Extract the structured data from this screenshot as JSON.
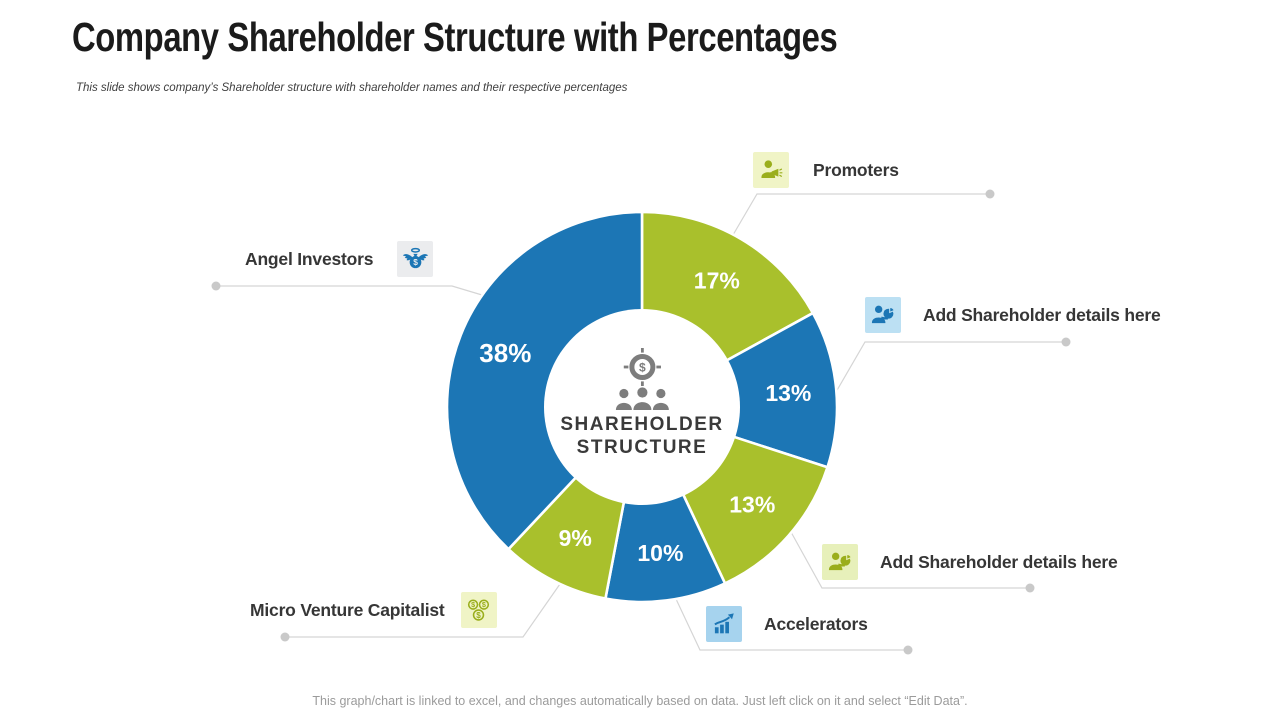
{
  "slide": {
    "title": "Company Shareholder Structure with Percentages",
    "subtitle": "This slide shows company’s Shareholder structure with shareholder names and their respective percentages",
    "footer": "This graph/chart is linked to excel, and changes automatically based on data. Just left click on it and select “Edit Data”."
  },
  "colors": {
    "slice_blue": "#1C76B5",
    "slice_green": "#A9C02C",
    "percent_label": "#FFFFFF",
    "leader_line": "#D5D5D5",
    "connector_dot": "#C9C9C9",
    "center_icon_gray": "#7D7D7D",
    "donut_hole": "#FFFFFF",
    "label_text": "#363636"
  },
  "chart_data": {
    "type": "pie",
    "subtype": "donut",
    "start_angle_deg": 0,
    "direction": "clockwise",
    "legend_position": "callouts",
    "center_label_line1": "SHAREHOLDER",
    "center_label_line2": "STRUCTURE",
    "center_icon": "target-dollar-people-icon",
    "segments": [
      {
        "label": "Promoters",
        "value": 17,
        "color": "#A9C02C"
      },
      {
        "label": "Add Shareholder details here",
        "value": 13,
        "color": "#1C76B5"
      },
      {
        "label": "Add Shareholder details here 2",
        "value": 13,
        "color": "#A9C02C"
      },
      {
        "label": "Accelerators",
        "value": 10,
        "color": "#1C76B5"
      },
      {
        "label": "Micro Venture Capitalist",
        "value": 9,
        "color": "#A9C02C"
      },
      {
        "label": "Angel Investors",
        "value": 38,
        "color": "#1C76B5"
      }
    ]
  },
  "callouts": [
    {
      "text": "Promoters",
      "icon": "person-megaphone-icon",
      "icon_bg": "#F0F4C6",
      "icon_color": "#9AAE1C"
    },
    {
      "text": "Add Shareholder details here",
      "icon": "person-piechart-icon",
      "icon_bg": "#BCE0F3",
      "icon_color": "#1C76B5"
    },
    {
      "text": "Add Shareholder details here",
      "icon": "person-piechart-icon",
      "icon_bg": "#E7F0BA",
      "icon_color": "#9AAE1C"
    },
    {
      "text": "Accelerators",
      "icon": "bar-chart-arrow-icon",
      "icon_bg": "#A6D3EE",
      "icon_color": "#1C76B5"
    },
    {
      "text": "Micro Venture Capitalist",
      "icon": "coins-icon",
      "icon_bg": "#F0F4C6",
      "icon_color": "#9AAE1C"
    },
    {
      "text": "Angel Investors",
      "icon": "winged-money-bag-icon",
      "icon_bg": "#EBECEE",
      "icon_color": "#1C76B5"
    }
  ]
}
